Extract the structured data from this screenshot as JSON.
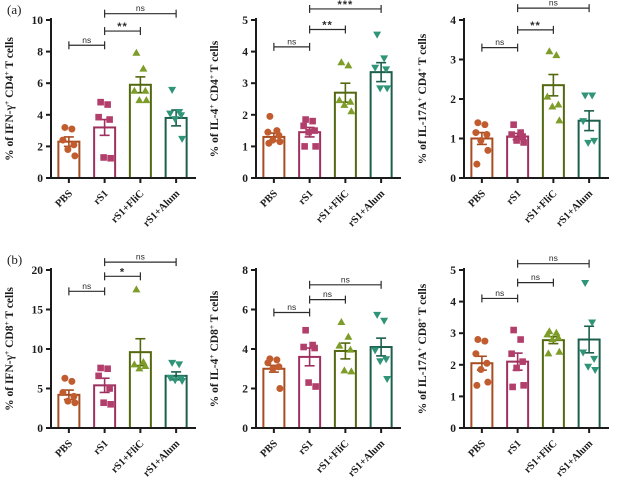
{
  "panels": {
    "a": "(a)",
    "b": "(b)"
  },
  "palette": {
    "axis_color": "#1b1b1b",
    "bracket_color": "#2b2b2b",
    "bar_fill": "#ffffff",
    "groups": [
      {
        "label": "PBS",
        "marker": "circle",
        "fill": "#c05c2e",
        "stroke": "#a84c22"
      },
      {
        "label": "rS1",
        "marker": "square",
        "fill": "#b23e6b",
        "stroke": "#9e3160"
      },
      {
        "label": "rS1+FliC",
        "marker": "triangle-up",
        "fill": "#7d9c28",
        "stroke": "#53680f"
      },
      {
        "label": "rS1+Alum",
        "marker": "triangle-down",
        "fill": "#2f9478",
        "stroke": "#1d5f4d"
      }
    ]
  },
  "chart_data": [
    {
      "type": "bar",
      "panel": "a",
      "ylabel": "% of IFN-γ+ CD4+ T cells",
      "categories": [
        "PBS",
        "rS1",
        "rS1+FliC",
        "rS1+Alum"
      ],
      "ylim": [
        0,
        10
      ],
      "yticks": [
        0,
        2,
        4,
        6,
        8,
        10
      ],
      "means": [
        2.3,
        3.2,
        5.9,
        3.8
      ],
      "sems": [
        0.3,
        0.5,
        0.5,
        0.5
      ],
      "points": [
        [
          3.2,
          3.1,
          2.4,
          2.1,
          1.8,
          1.4
        ],
        [
          4.8,
          4.65,
          3.85,
          3.7,
          1.3,
          1.25
        ],
        [
          7.9,
          6.9,
          5.5,
          5.5,
          4.9,
          4.9
        ],
        [
          5.6,
          4.2,
          4.1,
          4.0,
          3.75,
          2.5
        ]
      ],
      "brackets": [
        {
          "from": 0,
          "to": 1,
          "label": "ns",
          "y": 8.4
        },
        {
          "from": 1,
          "to": 2,
          "label": "**",
          "y": 9.3
        },
        {
          "from": 1,
          "to": 3,
          "label": "ns",
          "y": 10.4
        }
      ]
    },
    {
      "type": "bar",
      "panel": "a",
      "ylabel": "% of IL-4+ CD4+ T cells",
      "categories": [
        "PBS",
        "rS1",
        "rS1+FliC",
        "rS1+Alum"
      ],
      "ylim": [
        0,
        5
      ],
      "yticks": [
        0,
        1,
        2,
        3,
        4,
        5
      ],
      "means": [
        1.3,
        1.45,
        2.7,
        3.35
      ],
      "sems": [
        0.12,
        0.15,
        0.3,
        0.3
      ],
      "points": [
        [
          1.95,
          1.5,
          1.45,
          1.35,
          1.2,
          1.15,
          1.1
        ],
        [
          1.85,
          1.8,
          1.65,
          1.5,
          1.45,
          1.0,
          1.0
        ],
        [
          3.65,
          3.55,
          2.45,
          2.4,
          2.3,
          2.1
        ],
        [
          4.55,
          3.8,
          3.5,
          3.45,
          2.85,
          2.85
        ]
      ],
      "brackets": [
        {
          "from": 0,
          "to": 1,
          "label": "ns",
          "y": 4.15
        },
        {
          "from": 1,
          "to": 2,
          "label": "**",
          "y": 4.7
        },
        {
          "from": 1,
          "to": 3,
          "label": "***",
          "y": 5.35
        }
      ]
    },
    {
      "type": "bar",
      "panel": "a",
      "ylabel": "% of IL-17A+ CD4+ T cells",
      "categories": [
        "PBS",
        "rS1",
        "rS1+FliC",
        "rS1+Alum"
      ],
      "ylim": [
        0,
        4
      ],
      "yticks": [
        0,
        1,
        2,
        3,
        4
      ],
      "means": [
        1.0,
        1.05,
        2.35,
        1.45
      ],
      "sems": [
        0.15,
        0.08,
        0.27,
        0.25
      ],
      "points": [
        [
          1.4,
          1.35,
          1.15,
          1.1,
          0.95,
          0.7,
          0.35
        ],
        [
          1.35,
          1.15,
          1.1,
          1.05,
          0.95,
          0.9
        ],
        [
          3.2,
          3.1,
          2.05,
          1.85,
          1.8,
          1.45
        ],
        [
          2.1,
          2.1,
          1.45,
          0.95,
          0.9
        ]
      ],
      "brackets": [
        {
          "from": 0,
          "to": 1,
          "label": "ns",
          "y": 3.3
        },
        {
          "from": 1,
          "to": 2,
          "label": "**",
          "y": 3.75
        },
        {
          "from": 1,
          "to": 3,
          "label": "ns",
          "y": 4.3
        }
      ]
    },
    {
      "type": "bar",
      "panel": "b",
      "ylabel": "% of IFN-γ+ CD8+ T cells",
      "categories": [
        "PBS",
        "rS1",
        "rS1+FliC",
        "rS1+Alum"
      ],
      "ylim": [
        0,
        20
      ],
      "yticks": [
        0,
        5,
        10,
        15,
        20
      ],
      "means": [
        4.2,
        5.4,
        9.6,
        6.6
      ],
      "sems": [
        0.6,
        0.9,
        1.7,
        0.5
      ],
      "points": [
        [
          6.3,
          5.9,
          4.5,
          4.0,
          3.4,
          3.2
        ],
        [
          7.6,
          7.5,
          6.6,
          5.0,
          3.2,
          3.0
        ],
        [
          17.5,
          8.3,
          8.0,
          7.8,
          7.5
        ],
        [
          8.3,
          8.1,
          6.4,
          6.3,
          6.1,
          6.0
        ]
      ],
      "brackets": [
        {
          "from": 0,
          "to": 1,
          "label": "ns",
          "y": 17.3
        },
        {
          "from": 1,
          "to": 2,
          "label": "*",
          "y": 19.2
        },
        {
          "from": 1,
          "to": 3,
          "label": "ns",
          "y": 21.0
        }
      ]
    },
    {
      "type": "bar",
      "panel": "b",
      "ylabel": "% of IL-4+ CD8+ T cells",
      "categories": [
        "PBS",
        "rS1",
        "rS1+FliC",
        "rS1+Alum"
      ],
      "ylim": [
        0,
        8
      ],
      "yticks": [
        0,
        2,
        4,
        6,
        8
      ],
      "means": [
        3.0,
        3.6,
        3.9,
        4.1
      ],
      "sems": [
        0.17,
        0.45,
        0.4,
        0.45
      ],
      "points": [
        [
          3.5,
          3.45,
          3.3,
          3.1,
          3.0,
          2.0
        ],
        [
          4.95,
          4.2,
          4.1,
          4.05,
          2.3,
          2.1
        ],
        [
          5.35,
          4.6,
          4.15,
          3.95,
          2.9,
          2.85
        ],
        [
          5.75,
          5.45,
          3.95,
          3.5,
          3.4,
          2.5
        ]
      ],
      "brackets": [
        {
          "from": 0,
          "to": 1,
          "label": "ns",
          "y": 5.85
        },
        {
          "from": 1,
          "to": 2,
          "label": "ns",
          "y": 6.5
        },
        {
          "from": 1,
          "to": 3,
          "label": "ns",
          "y": 7.25
        }
      ]
    },
    {
      "type": "bar",
      "panel": "b",
      "ylabel": "% of IL-17A+ CD8+ T cells",
      "categories": [
        "PBS",
        "rS1",
        "rS1+FliC",
        "rS1+Alum"
      ],
      "ylim": [
        0,
        5
      ],
      "yticks": [
        0,
        1,
        2,
        3,
        4,
        5
      ],
      "means": [
        2.05,
        2.1,
        2.78,
        2.8
      ],
      "sems": [
        0.22,
        0.27,
        0.11,
        0.42
      ],
      "points": [
        [
          2.8,
          2.75,
          2.35,
          2.05,
          1.85,
          1.45,
          1.35
        ],
        [
          3.1,
          2.8,
          2.35,
          2.1,
          1.9,
          1.35,
          1.3
        ],
        [
          3.05,
          3.0,
          2.95,
          2.85,
          2.8,
          2.4,
          2.35
        ],
        [
          4.6,
          3.35,
          2.4,
          2.2,
          1.95,
          1.85
        ]
      ],
      "brackets": [
        {
          "from": 0,
          "to": 1,
          "label": "ns",
          "y": 4.1
        },
        {
          "from": 1,
          "to": 2,
          "label": "ns",
          "y": 4.6
        },
        {
          "from": 1,
          "to": 3,
          "label": "ns",
          "y": 5.2
        }
      ]
    }
  ]
}
